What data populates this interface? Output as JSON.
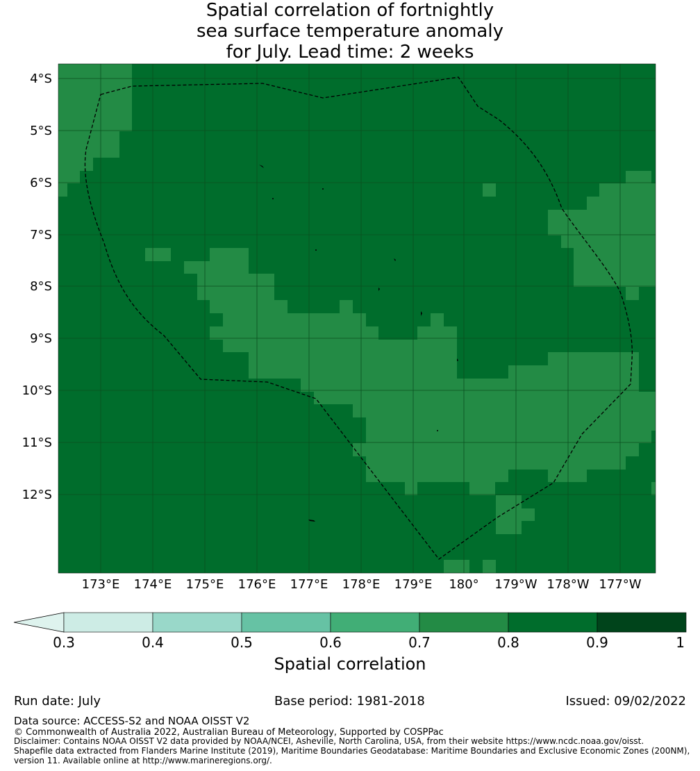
{
  "title_lines": [
    "Spatial correlation of fortnightly",
    "sea surface temperature anomaly",
    "for July. Lead time: 2 weeks"
  ],
  "map": {
    "lat_labels": [
      "4°S",
      "5°S",
      "6°S",
      "7°S",
      "8°S",
      "9°S",
      "10°S",
      "11°S",
      "12°S"
    ],
    "lon_labels": [
      "173°E",
      "174°E",
      "175°E",
      "176°E",
      "177°E",
      "178°E",
      "179°E",
      "180°",
      "179°W",
      "178°W",
      "177°W"
    ],
    "grid_color": "#0b4f1f",
    "boundary_color": "#000000",
    "land_color": "#000000"
  },
  "chart_data": {
    "type": "heatmap",
    "title": "Spatial correlation of fortnightly sea surface temperature anomaly for July. Lead time: 2 weeks",
    "x_ticks": [
      "173°E",
      "174°E",
      "175°E",
      "176°E",
      "177°E",
      "178°E",
      "179°E",
      "180°",
      "179°W",
      "178°W",
      "177°W"
    ],
    "y_ticks": [
      "4°S",
      "5°S",
      "6°S",
      "7°S",
      "8°S",
      "9°S",
      "10°S",
      "11°S",
      "12°S"
    ],
    "dominant_class": "0.8–0.9",
    "secondary_class": "0.7–0.8",
    "colorbar": {
      "label": "Spatial correlation",
      "ticks": [
        "0.3",
        "0.4",
        "0.5",
        "0.6",
        "0.7",
        "0.8",
        "0.9",
        "1"
      ],
      "colors": [
        "#def3ee",
        "#cdece5",
        "#99d8c9",
        "#66c2a4",
        "#41ae76",
        "#238b45",
        "#006d2c",
        "#00441b"
      ],
      "extend": "min"
    }
  },
  "footer": {
    "run_date": "Run date: July",
    "base_period": "Base period: 1981-2018",
    "issued": "Issued: 09/02/2022",
    "data_source": "Data source: ACCESS-S2 and NOAA OISST V2",
    "copyright": "© Commonwealth of Australia 2022, Australian Bureau of Meteorology, Supported by COSPPac",
    "disclaimer": [
      "Disclaimer: Contains NOAA OISST V2 data provided by NOAA/NCEI, Asheville, North Carolina, USA, from their website https://www.ncdc.noaa.gov/oisst.",
      "Shapefile data extracted from Flanders Marine Institute (2019), Maritime Boundaries Geodatabase: Maritime Boundaries and Exclusive Economic Zones (200NM),",
      "version 11. Available online at http://www.marineregions.org/."
    ]
  }
}
